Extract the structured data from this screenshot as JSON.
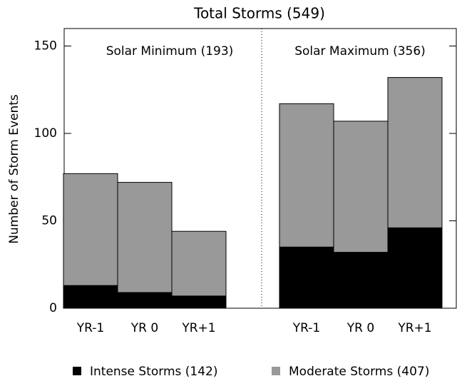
{
  "chart_data": {
    "type": "stacked_bar",
    "title": "Total Storms (549)",
    "y_label": "Number of Storm Events",
    "categories": [
      "YR-1",
      "YR 0",
      "YR+1",
      "YR-1",
      "YR 0",
      "YR+1"
    ],
    "groups": [
      "Solar Minimum (193)",
      "Solar Maximum (356)"
    ],
    "series": [
      {
        "name": "Intense Storms (142)",
        "color": "#000000",
        "values": [
          13,
          9,
          7,
          35,
          32,
          46
        ]
      },
      {
        "name": "Moderate Storms (407)",
        "color": "#999999",
        "values": [
          64,
          63,
          37,
          82,
          75,
          86
        ]
      }
    ],
    "ylim": [
      0,
      160
    ],
    "yticks": [
      0,
      50,
      100,
      150
    ]
  }
}
